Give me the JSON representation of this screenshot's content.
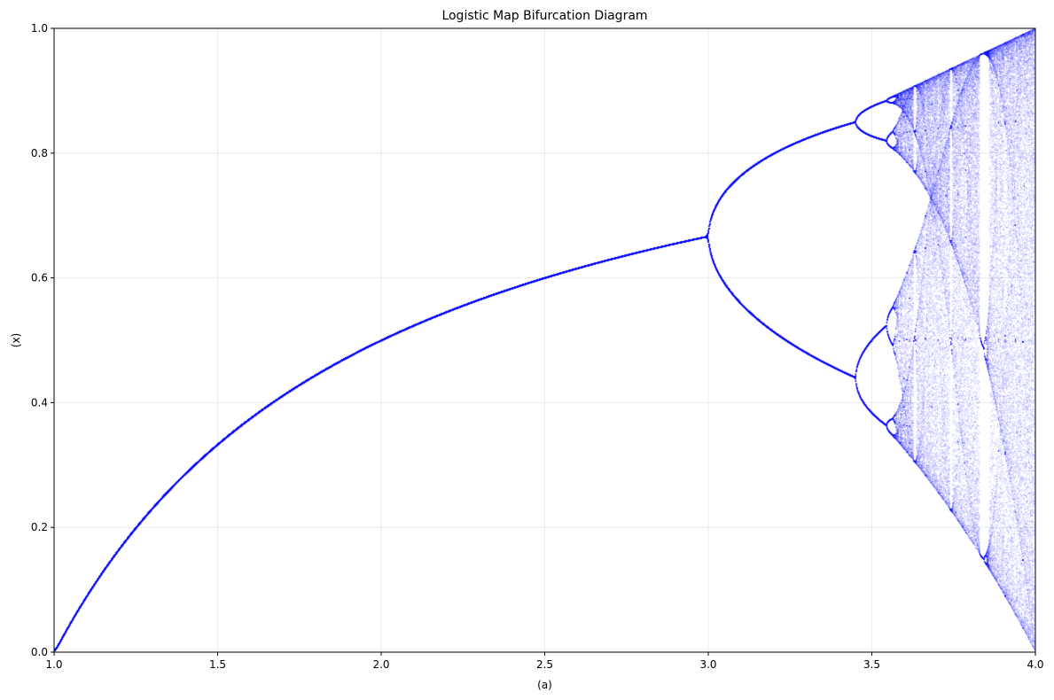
{
  "chart_data": {
    "type": "scatter",
    "title": "Logistic Map Bifurcation Diagram",
    "xlabel": "(a)",
    "ylabel": "(x)",
    "xlim": [
      1.0,
      4.0
    ],
    "ylim": [
      0.0,
      1.0
    ],
    "xticks": [
      "1.0",
      "1.5",
      "2.0",
      "2.5",
      "3.0",
      "3.5",
      "4.0"
    ],
    "yticks": [
      "0.0",
      "0.2",
      "0.4",
      "0.6",
      "0.8",
      "1.0"
    ],
    "grid": true,
    "legend": "none",
    "series": [
      {
        "map": "x_next = a * x * (1 - x)",
        "a_range": [
          1.0,
          4.0
        ],
        "x": [
          1.0,
          1.5,
          2.0,
          2.5,
          2.8,
          3.0,
          3.2,
          3.2,
          3.449,
          3.449,
          3.5,
          3.5,
          3.5,
          3.5,
          3.55,
          3.6,
          3.7,
          3.8,
          3.83,
          3.83,
          3.83,
          4.0,
          4.0
        ],
        "y": [
          0.0,
          0.333,
          0.5,
          0.6,
          0.643,
          0.667,
          0.799,
          0.513,
          0.85,
          0.44,
          0.875,
          0.827,
          0.5,
          0.383,
          0.89,
          0.9,
          0.925,
          0.95,
          0.957,
          0.505,
          0.156,
          1.0,
          0.0
        ],
        "color": "#0000ff"
      }
    ]
  }
}
